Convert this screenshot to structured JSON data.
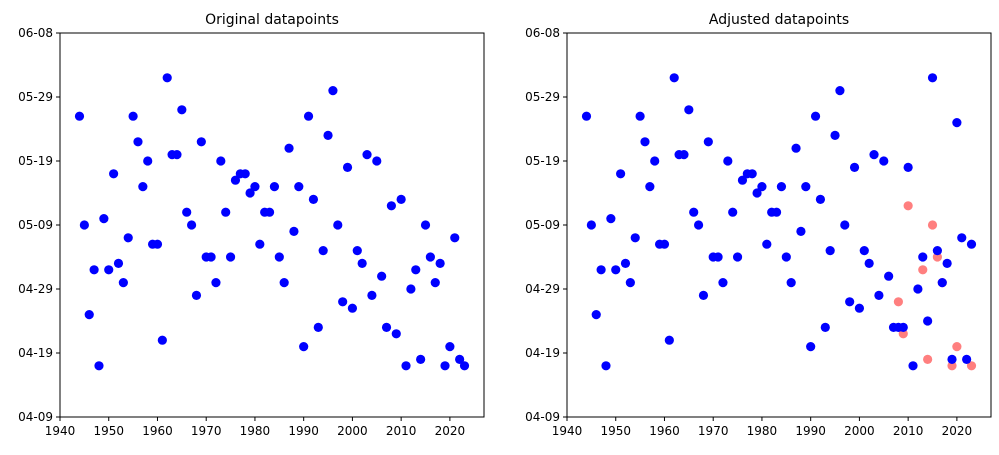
{
  "chart_data": [
    {
      "type": "scatter",
      "title": "Original datapoints",
      "xlabel": "",
      "ylabel": "",
      "xlim": [
        1940,
        2027
      ],
      "ylim": [
        "04-09",
        "06-08"
      ],
      "x_ticks": [
        "1940",
        "1950",
        "1960",
        "1970",
        "1980",
        "1990",
        "2000",
        "2010",
        "2020"
      ],
      "y_ticks": [
        "04-09",
        "04-19",
        "04-29",
        "05-09",
        "05-19",
        "05-29",
        "06-08"
      ],
      "grid": false,
      "series": [
        {
          "color": "#0000ff",
          "points": [
            [
              1944,
              "05-26"
            ],
            [
              1945,
              "05-09"
            ],
            [
              1946,
              "04-25"
            ],
            [
              1947,
              "05-02"
            ],
            [
              1948,
              "04-17"
            ],
            [
              1949,
              "05-10"
            ],
            [
              1950,
              "05-02"
            ],
            [
              1951,
              "05-17"
            ],
            [
              1952,
              "05-03"
            ],
            [
              1953,
              "04-30"
            ],
            [
              1954,
              "05-07"
            ],
            [
              1955,
              "05-26"
            ],
            [
              1956,
              "05-22"
            ],
            [
              1957,
              "05-15"
            ],
            [
              1958,
              "05-19"
            ],
            [
              1959,
              "05-06"
            ],
            [
              1960,
              "05-06"
            ],
            [
              1961,
              "04-21"
            ],
            [
              1962,
              "06-01"
            ],
            [
              1963,
              "05-20"
            ],
            [
              1964,
              "05-20"
            ],
            [
              1965,
              "05-27"
            ],
            [
              1966,
              "05-11"
            ],
            [
              1967,
              "05-09"
            ],
            [
              1968,
              "04-28"
            ],
            [
              1969,
              "05-22"
            ],
            [
              1970,
              "05-04"
            ],
            [
              1971,
              "05-04"
            ],
            [
              1972,
              "04-30"
            ],
            [
              1973,
              "05-19"
            ],
            [
              1974,
              "05-11"
            ],
            [
              1975,
              "05-04"
            ],
            [
              1976,
              "05-16"
            ],
            [
              1977,
              "05-17"
            ],
            [
              1978,
              "05-17"
            ],
            [
              1979,
              "05-14"
            ],
            [
              1980,
              "05-15"
            ],
            [
              1981,
              "05-06"
            ],
            [
              1982,
              "05-11"
            ],
            [
              1983,
              "05-11"
            ],
            [
              1984,
              "05-15"
            ],
            [
              1985,
              "05-04"
            ],
            [
              1986,
              "04-30"
            ],
            [
              1987,
              "05-21"
            ],
            [
              1988,
              "05-08"
            ],
            [
              1989,
              "05-15"
            ],
            [
              1990,
              "04-20"
            ],
            [
              1991,
              "05-26"
            ],
            [
              1992,
              "05-13"
            ],
            [
              1993,
              "04-23"
            ],
            [
              1994,
              "05-05"
            ],
            [
              1995,
              "05-23"
            ],
            [
              1996,
              "05-30"
            ],
            [
              1997,
              "05-09"
            ],
            [
              1998,
              "04-27"
            ],
            [
              1999,
              "05-18"
            ],
            [
              2000,
              "04-26"
            ],
            [
              2001,
              "05-05"
            ],
            [
              2002,
              "05-03"
            ],
            [
              2003,
              "05-20"
            ],
            [
              2004,
              "04-28"
            ],
            [
              2005,
              "05-19"
            ],
            [
              2006,
              "05-01"
            ],
            [
              2007,
              "04-23"
            ],
            [
              2008,
              "05-12"
            ],
            [
              2009,
              "04-22"
            ],
            [
              2010,
              "05-13"
            ],
            [
              2011,
              "04-17"
            ],
            [
              2012,
              "04-29"
            ],
            [
              2013,
              "05-02"
            ],
            [
              2014,
              "04-18"
            ],
            [
              2015,
              "05-09"
            ],
            [
              2016,
              "05-04"
            ],
            [
              2017,
              "04-30"
            ],
            [
              2018,
              "05-03"
            ],
            [
              2019,
              "04-17"
            ],
            [
              2020,
              "04-20"
            ],
            [
              2021,
              "05-07"
            ],
            [
              2022,
              "04-18"
            ],
            [
              2023,
              "04-17"
            ]
          ]
        }
      ]
    },
    {
      "type": "scatter",
      "title": "Adjusted datapoints",
      "xlabel": "",
      "ylabel": "",
      "xlim": [
        1940,
        2027
      ],
      "ylim": [
        "04-09",
        "06-08"
      ],
      "x_ticks": [
        "1940",
        "1950",
        "1960",
        "1970",
        "1980",
        "1990",
        "2000",
        "2010",
        "2020"
      ],
      "y_ticks": [
        "04-09",
        "04-19",
        "04-29",
        "05-09",
        "05-19",
        "05-29",
        "06-08"
      ],
      "grid": false,
      "series": [
        {
          "color": "#ff0000",
          "opacity": 0.5,
          "points": [
            [
              2008,
              "04-27"
            ],
            [
              2009,
              "04-22"
            ],
            [
              2010,
              "05-12"
            ],
            [
              2013,
              "05-02"
            ],
            [
              2014,
              "04-18"
            ],
            [
              2015,
              "05-09"
            ],
            [
              2016,
              "05-04"
            ],
            [
              2017,
              "04-30"
            ],
            [
              2019,
              "04-17"
            ],
            [
              2020,
              "04-20"
            ],
            [
              2023,
              "04-17"
            ]
          ]
        },
        {
          "color": "#0000ff",
          "points": [
            [
              1944,
              "05-26"
            ],
            [
              1945,
              "05-09"
            ],
            [
              1946,
              "04-25"
            ],
            [
              1947,
              "05-02"
            ],
            [
              1948,
              "04-17"
            ],
            [
              1949,
              "05-10"
            ],
            [
              1950,
              "05-02"
            ],
            [
              1951,
              "05-17"
            ],
            [
              1952,
              "05-03"
            ],
            [
              1953,
              "04-30"
            ],
            [
              1954,
              "05-07"
            ],
            [
              1955,
              "05-26"
            ],
            [
              1956,
              "05-22"
            ],
            [
              1957,
              "05-15"
            ],
            [
              1958,
              "05-19"
            ],
            [
              1959,
              "05-06"
            ],
            [
              1960,
              "05-06"
            ],
            [
              1961,
              "04-21"
            ],
            [
              1962,
              "06-01"
            ],
            [
              1963,
              "05-20"
            ],
            [
              1964,
              "05-20"
            ],
            [
              1965,
              "05-27"
            ],
            [
              1966,
              "05-11"
            ],
            [
              1967,
              "05-09"
            ],
            [
              1968,
              "04-28"
            ],
            [
              1969,
              "05-22"
            ],
            [
              1970,
              "05-04"
            ],
            [
              1971,
              "05-04"
            ],
            [
              1972,
              "04-30"
            ],
            [
              1973,
              "05-19"
            ],
            [
              1974,
              "05-11"
            ],
            [
              1975,
              "05-04"
            ],
            [
              1976,
              "05-16"
            ],
            [
              1977,
              "05-17"
            ],
            [
              1978,
              "05-17"
            ],
            [
              1979,
              "05-14"
            ],
            [
              1980,
              "05-15"
            ],
            [
              1981,
              "05-06"
            ],
            [
              1982,
              "05-11"
            ],
            [
              1983,
              "05-11"
            ],
            [
              1984,
              "05-15"
            ],
            [
              1985,
              "05-04"
            ],
            [
              1986,
              "04-30"
            ],
            [
              1987,
              "05-21"
            ],
            [
              1988,
              "05-08"
            ],
            [
              1989,
              "05-15"
            ],
            [
              1990,
              "04-20"
            ],
            [
              1991,
              "05-26"
            ],
            [
              1992,
              "05-13"
            ],
            [
              1993,
              "04-23"
            ],
            [
              1994,
              "05-05"
            ],
            [
              1995,
              "05-23"
            ],
            [
              1996,
              "05-30"
            ],
            [
              1997,
              "05-09"
            ],
            [
              1998,
              "04-27"
            ],
            [
              1999,
              "05-18"
            ],
            [
              2000,
              "04-26"
            ],
            [
              2001,
              "05-05"
            ],
            [
              2002,
              "05-03"
            ],
            [
              2003,
              "05-20"
            ],
            [
              2004,
              "04-28"
            ],
            [
              2005,
              "05-19"
            ],
            [
              2006,
              "05-01"
            ],
            [
              2007,
              "04-23"
            ],
            [
              2008,
              "04-23"
            ],
            [
              2009,
              "04-23"
            ],
            [
              2010,
              "05-18"
            ],
            [
              2011,
              "04-17"
            ],
            [
              2012,
              "04-29"
            ],
            [
              2013,
              "05-04"
            ],
            [
              2014,
              "04-24"
            ],
            [
              2015,
              "06-01"
            ],
            [
              2016,
              "05-05"
            ],
            [
              2017,
              "05-00"
            ],
            [
              2018,
              "05-03"
            ],
            [
              2019,
              "04-18"
            ],
            [
              2020,
              "05-25"
            ],
            [
              2021,
              "05-07"
            ],
            [
              2022,
              "04-18"
            ],
            [
              2023,
              "05-06"
            ]
          ]
        }
      ]
    }
  ]
}
